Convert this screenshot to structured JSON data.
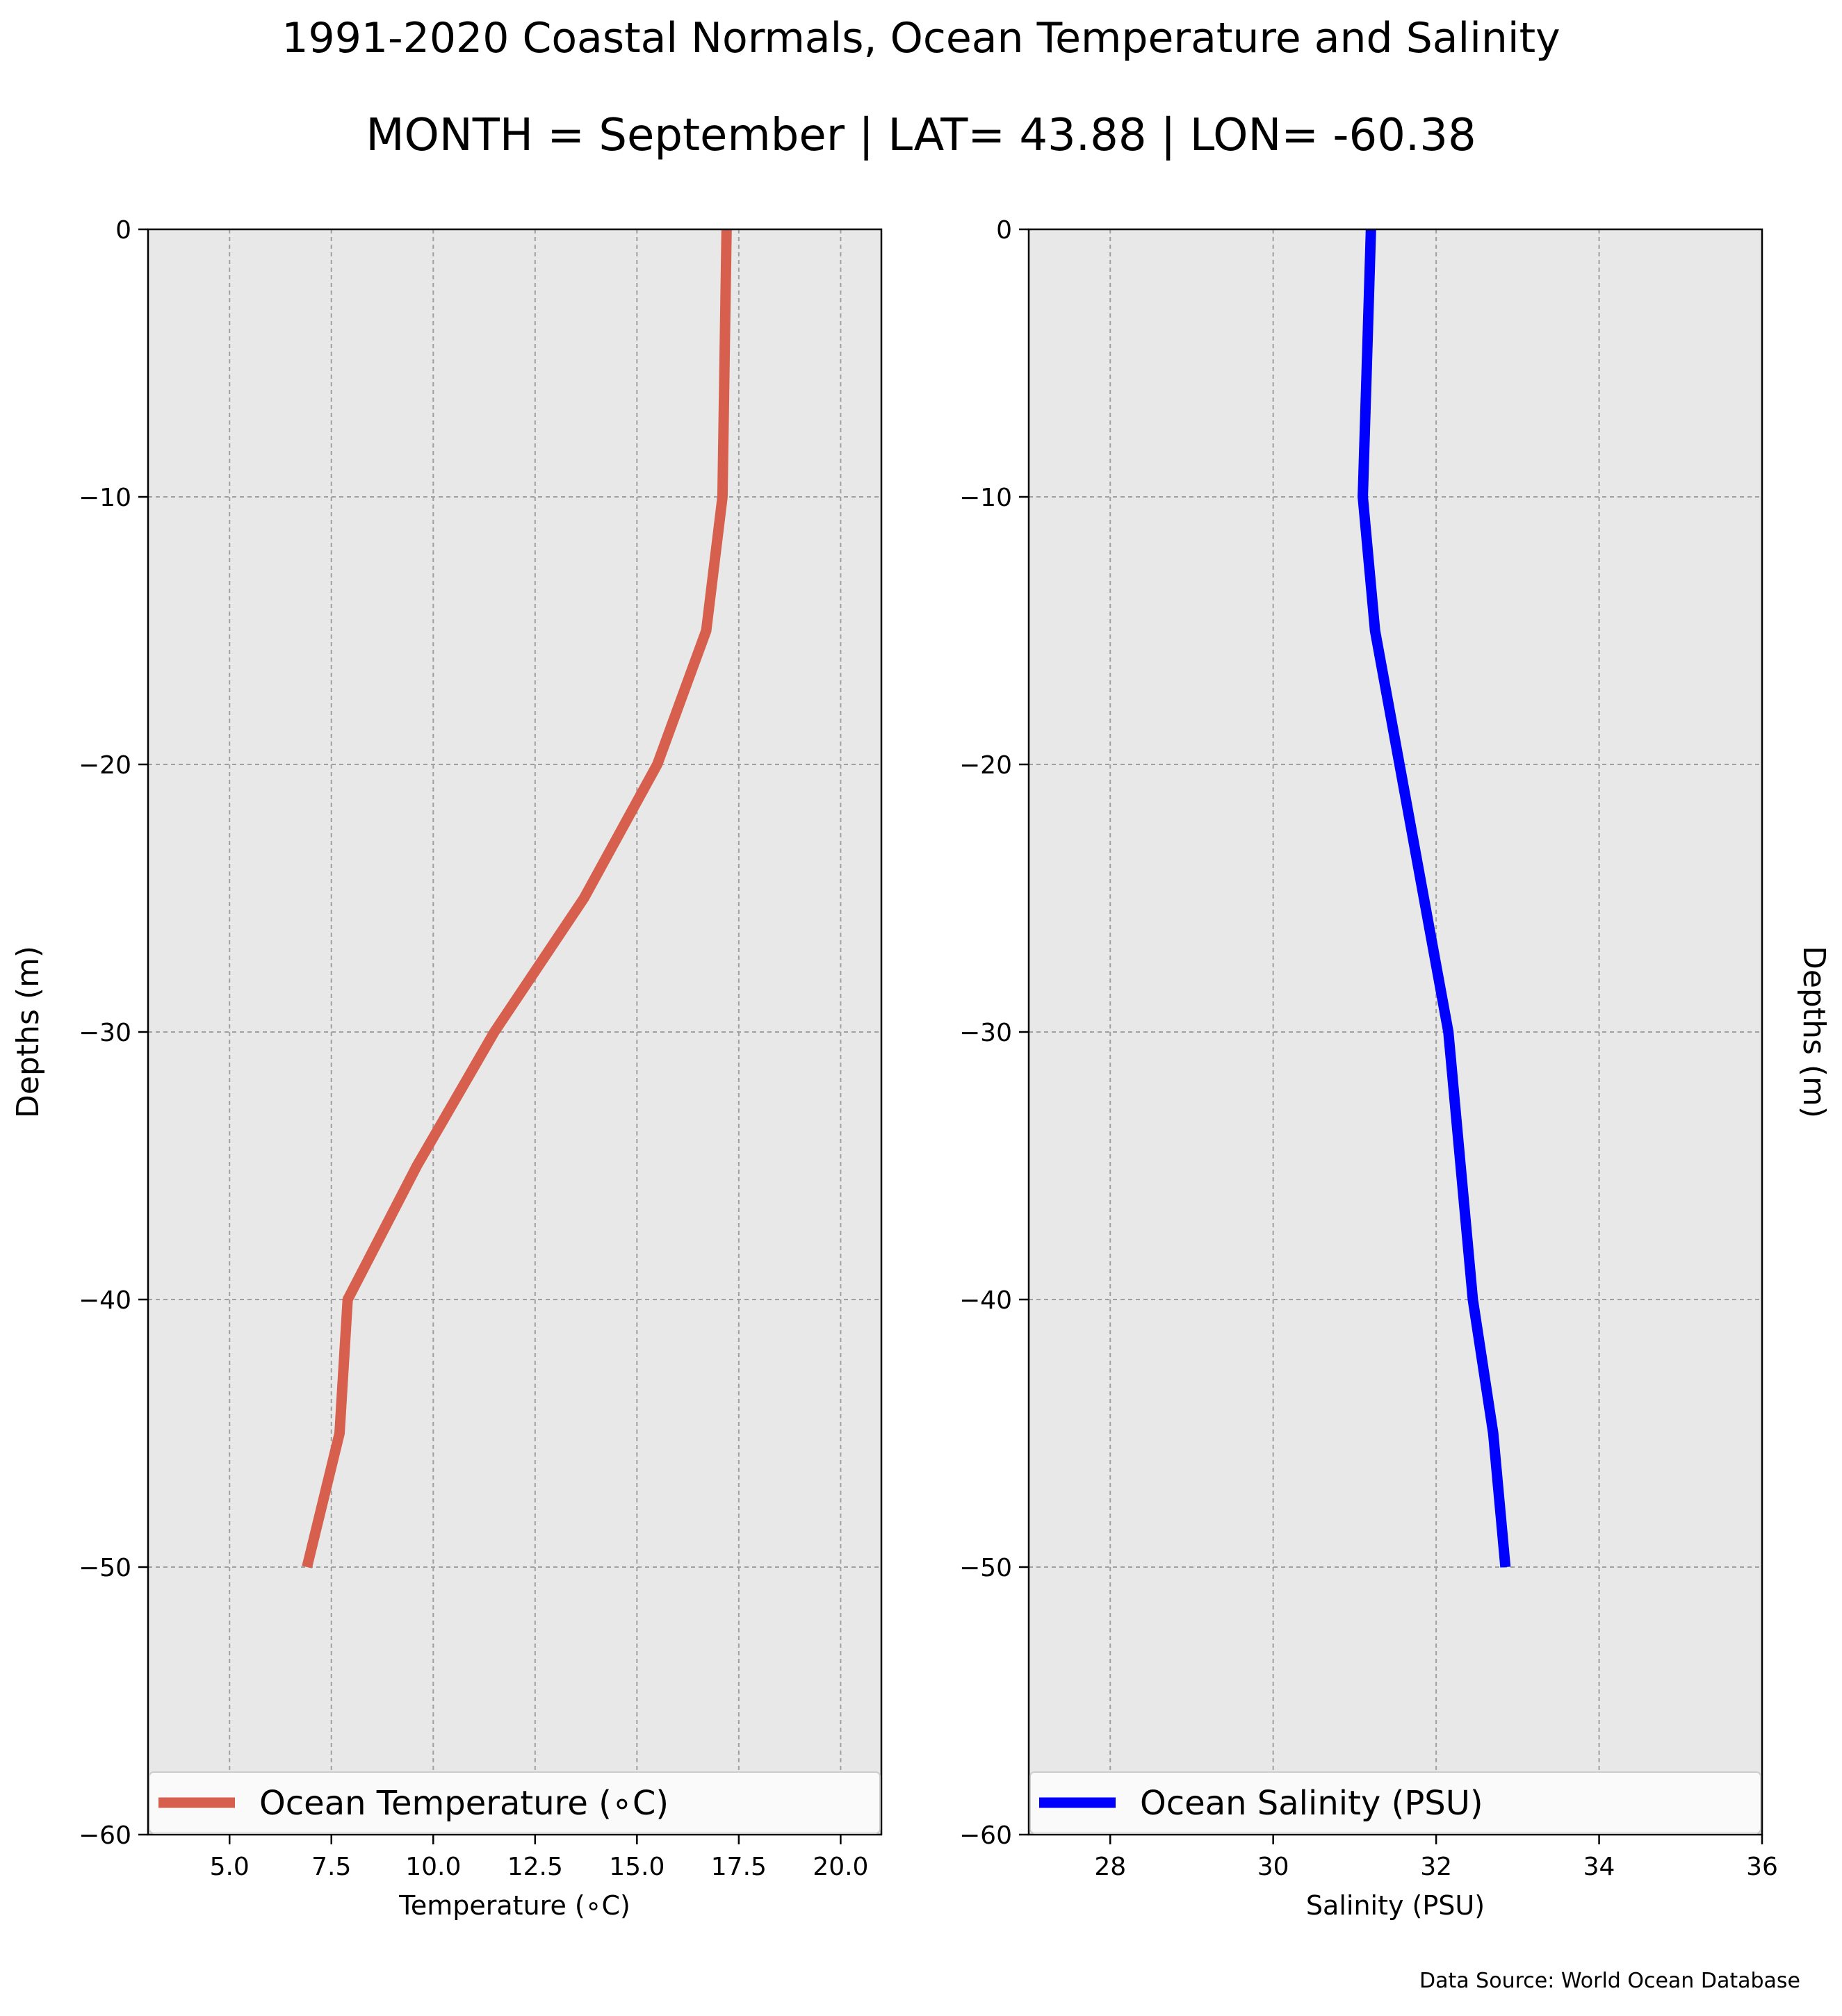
{
  "header": {
    "title": "1991-2020 Coastal Normals, Ocean Temperature and Salinity",
    "subtitle": "MONTH = September | LAT= 43.88 | LON= -60.38"
  },
  "source_note": "Data Source: World Ocean Database",
  "chart_data": [
    {
      "type": "line",
      "panel": "left",
      "xlabel": "Temperature (∘C)",
      "ylabel": "Depths (m)",
      "xlim": [
        3,
        21
      ],
      "ylim": [
        -60,
        0
      ],
      "xticks": [
        5.0,
        7.5,
        10.0,
        12.5,
        15.0,
        17.5,
        20.0
      ],
      "xtick_labels": [
        "5.0",
        "7.5",
        "10.0",
        "12.5",
        "15.0",
        "17.5",
        "20.0"
      ],
      "yticks": [
        0,
        -10,
        -20,
        -30,
        -40,
        -50,
        -60
      ],
      "ytick_labels": [
        "0",
        "−10",
        "−20",
        "−30",
        "−40",
        "−50",
        "−60"
      ],
      "grid": true,
      "legend_position": "lower",
      "series": [
        {
          "name": "Ocean Temperature (∘C)",
          "color": "#d6604d",
          "x": [
            17.2,
            17.1,
            16.7,
            15.5,
            13.7,
            11.5,
            9.6,
            7.9,
            7.7,
            6.9
          ],
          "y": [
            0,
            -10,
            -15,
            -20,
            -25,
            -30,
            -35,
            -40,
            -45,
            -50
          ]
        }
      ]
    },
    {
      "type": "line",
      "panel": "right",
      "xlabel": "Salinity (PSU)",
      "ylabel": "Depths (m)",
      "xlim": [
        27,
        36
      ],
      "ylim": [
        -60,
        0
      ],
      "xticks": [
        28,
        30,
        32,
        34,
        36
      ],
      "xtick_labels": [
        "28",
        "30",
        "32",
        "34",
        "36"
      ],
      "yticks": [
        0,
        -10,
        -20,
        -30,
        -40,
        -50,
        -60
      ],
      "ytick_labels": [
        "0",
        "−10",
        "−20",
        "−30",
        "−40",
        "−50",
        "−60"
      ],
      "grid": true,
      "legend_position": "lower",
      "series": [
        {
          "name": "Ocean Salinity (PSU)",
          "color": "#0000ff",
          "x": [
            31.2,
            31.15,
            31.1,
            31.25,
            31.55,
            31.85,
            32.15,
            32.3,
            32.45,
            32.7,
            32.85
          ],
          "y": [
            0,
            -5,
            -10,
            -15,
            -20,
            -25,
            -30,
            -35,
            -40,
            -45,
            -50
          ]
        }
      ]
    }
  ]
}
